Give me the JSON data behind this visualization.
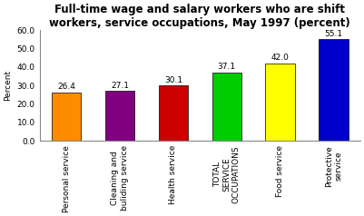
{
  "title": "Full-time wage and salary workers who are shift\nworkers, service occupations, May 1997 (percent)",
  "categories": [
    "Personal service",
    "Cleaning and\nbuliding service",
    "Health service",
    "TOTAL\nSERVICE\nOCCUPATIONS",
    "Food service",
    "Protective\nservice"
  ],
  "values": [
    26.4,
    27.1,
    30.1,
    37.1,
    42.0,
    55.1
  ],
  "bar_colors": [
    "#FF8C00",
    "#800080",
    "#CC0000",
    "#00CC00",
    "#FFFF00",
    "#0000CC"
  ],
  "ylabel": "Percent",
  "ylim": [
    0,
    60
  ],
  "yticks": [
    0.0,
    10.0,
    20.0,
    30.0,
    40.0,
    50.0,
    60.0
  ],
  "background_color": "#ffffff",
  "bar_edge_color": "#000000",
  "title_fontsize": 8.5,
  "label_fontsize": 6.5,
  "tick_fontsize": 6.5,
  "value_fontsize": 6.5,
  "bar_width": 0.55
}
